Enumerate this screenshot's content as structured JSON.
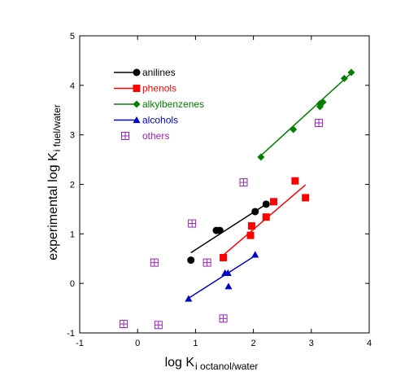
{
  "chart_data": {
    "type": "scatter",
    "xlabel": {
      "main": "log K",
      "sub": "i octanol/water"
    },
    "ylabel": {
      "main": "experimental log K",
      "sub": "i fuel/water"
    },
    "xlim": [
      -1,
      4
    ],
    "ylim": [
      -1,
      5
    ],
    "xticks": [
      "-1",
      "0",
      "1",
      "2",
      "3",
      "4"
    ],
    "yticks": [
      "-1",
      "0",
      "1",
      "2",
      "3",
      "4",
      "5"
    ],
    "grid": false,
    "legend_position": "top-left",
    "series": [
      {
        "name": "anilines",
        "color": "#000000",
        "marker": "circle",
        "points": [
          [
            0.92,
            0.47
          ],
          [
            1.36,
            1.07
          ],
          [
            1.42,
            1.07
          ],
          [
            2.03,
            1.45
          ],
          [
            2.22,
            1.6
          ]
        ],
        "fit": [
          [
            0.92,
            0.62
          ],
          [
            2.22,
            1.6
          ]
        ]
      },
      {
        "name": "phenols",
        "color": "#ff0000",
        "marker": "square",
        "points": [
          [
            1.48,
            0.52
          ],
          [
            1.95,
            0.97
          ],
          [
            1.97,
            1.16
          ],
          [
            2.22,
            1.34
          ],
          [
            2.35,
            1.65
          ],
          [
            2.72,
            2.07
          ],
          [
            2.9,
            1.73
          ]
        ],
        "fit": [
          [
            1.48,
            0.57
          ],
          [
            2.9,
            1.99
          ]
        ]
      },
      {
        "name": "alkylbenzenes",
        "color": "#007f00",
        "marker": "diamond",
        "points": [
          [
            2.13,
            2.55
          ],
          [
            2.69,
            3.11
          ],
          [
            3.15,
            3.57
          ],
          [
            3.15,
            3.63
          ],
          [
            3.2,
            3.66
          ],
          [
            3.57,
            4.14
          ],
          [
            3.69,
            4.26
          ]
        ],
        "fit": [
          [
            2.1,
            2.55
          ],
          [
            3.72,
            4.28
          ]
        ]
      },
      {
        "name": "alcohols",
        "color": "#0000cc",
        "marker": "triangle",
        "points": [
          [
            0.88,
            -0.31
          ],
          [
            1.51,
            0.21
          ],
          [
            1.56,
            0.21
          ],
          [
            1.57,
            -0.06
          ],
          [
            2.03,
            0.58
          ]
        ],
        "fit": [
          [
            0.88,
            -0.3
          ],
          [
            2.03,
            0.56
          ]
        ]
      },
      {
        "name": "others",
        "color": "#a020c0",
        "marker": "boxed-plus",
        "points": [
          [
            -0.24,
            -0.82
          ],
          [
            0.29,
            0.42
          ],
          [
            0.36,
            -0.84
          ],
          [
            0.94,
            1.21
          ],
          [
            1.2,
            0.42
          ],
          [
            1.48,
            -0.71
          ],
          [
            1.83,
            2.04
          ],
          [
            3.13,
            3.24
          ]
        ],
        "fit": null
      }
    ]
  }
}
